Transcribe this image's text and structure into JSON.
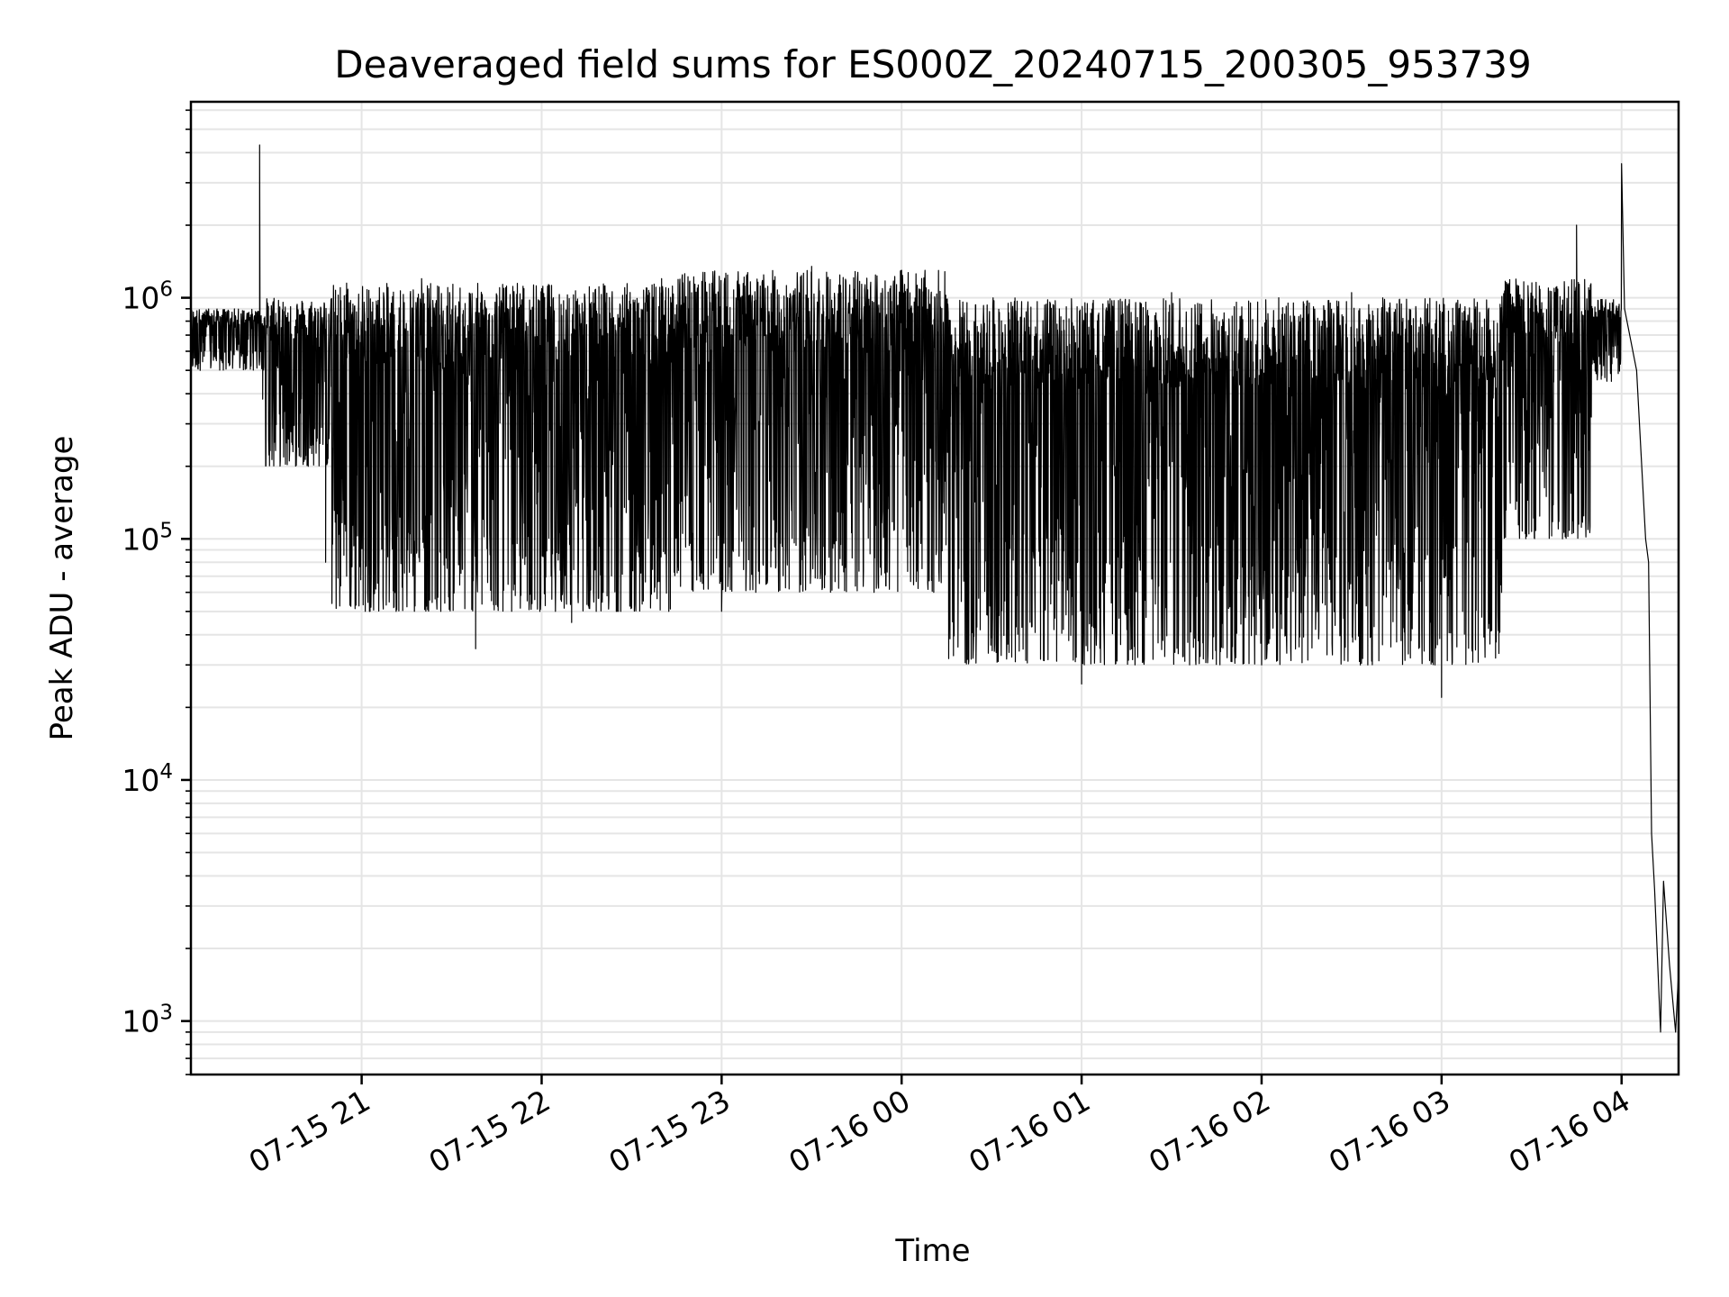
{
  "chart_data": {
    "type": "line",
    "title": "Deaveraged field sums for ES000Z_20240715_200305_953739",
    "xlabel": "Time",
    "ylabel": "Peak ADU - average",
    "y_scale": "log",
    "ylim": [
      600,
      6500000
    ],
    "xlim": [
      "2024-07-15T20:03:05",
      "2024-07-16T04:19:00"
    ],
    "grid": true,
    "grid_color": "#e5e5e5",
    "line_color": "#000000",
    "x_ticks": [
      {
        "t": "2024-07-15T21:00:00",
        "label": "07-15 21"
      },
      {
        "t": "2024-07-15T22:00:00",
        "label": "07-15 22"
      },
      {
        "t": "2024-07-15T23:00:00",
        "label": "07-15 23"
      },
      {
        "t": "2024-07-16T00:00:00",
        "label": "07-16 00"
      },
      {
        "t": "2024-07-16T01:00:00",
        "label": "07-16 01"
      },
      {
        "t": "2024-07-16T02:00:00",
        "label": "07-16 02"
      },
      {
        "t": "2024-07-16T03:00:00",
        "label": "07-16 03"
      },
      {
        "t": "2024-07-16T04:00:00",
        "label": "07-16 04"
      }
    ],
    "y_ticks": [
      {
        "value": 1000,
        "base": "10",
        "exp": "3"
      },
      {
        "value": 10000,
        "base": "10",
        "exp": "4"
      },
      {
        "value": 100000,
        "base": "10",
        "exp": "5"
      },
      {
        "value": 1000000,
        "base": "10",
        "exp": "6"
      }
    ],
    "series": [
      {
        "points": [
          [
            "2024-07-15T20:03:05",
            520000
          ],
          [
            "2024-07-15T20:10:00",
            650000
          ],
          [
            "2024-07-15T20:20:00",
            720000
          ],
          [
            "2024-07-15T20:25:00",
            620000
          ],
          [
            "2024-07-15T20:26:00",
            4300000
          ],
          [
            "2024-07-15T20:27:00",
            380000
          ],
          [
            "2024-07-15T20:35:00",
            250000
          ],
          [
            "2024-07-15T20:48:00",
            80000
          ],
          [
            "2024-07-15T20:55:00",
            1150000
          ],
          [
            "2024-07-15T21:02:00",
            60000
          ],
          [
            "2024-07-15T21:20:00",
            1200000
          ],
          [
            "2024-07-15T21:38:00",
            35000
          ],
          [
            "2024-07-15T21:48:00",
            1100000
          ],
          [
            "2024-07-15T22:10:00",
            45000
          ],
          [
            "2024-07-15T22:40:00",
            1200000
          ],
          [
            "2024-07-15T23:00:00",
            50000
          ],
          [
            "2024-07-15T23:30:00",
            1350000
          ],
          [
            "2024-07-16T00:00:00",
            1300000
          ],
          [
            "2024-07-16T00:30:00",
            40000
          ],
          [
            "2024-07-16T01:00:00",
            25000
          ],
          [
            "2024-07-16T01:30:00",
            1050000
          ],
          [
            "2024-07-16T02:00:00",
            30000
          ],
          [
            "2024-07-16T02:30:00",
            1050000
          ],
          [
            "2024-07-16T03:00:00",
            22000
          ],
          [
            "2024-07-16T03:20:00",
            60000
          ],
          [
            "2024-07-16T03:35:00",
            200000
          ],
          [
            "2024-07-16T03:45:00",
            2000000
          ],
          [
            "2024-07-16T03:55:00",
            700000
          ],
          [
            "2024-07-16T04:00:00",
            3600000
          ],
          [
            "2024-07-16T04:01:00",
            900000
          ],
          [
            "2024-07-16T04:05:00",
            500000
          ],
          [
            "2024-07-16T04:08:00",
            100000
          ],
          [
            "2024-07-16T04:09:00",
            80000
          ],
          [
            "2024-07-16T04:10:00",
            6000
          ],
          [
            "2024-07-16T04:11:00",
            3500
          ],
          [
            "2024-07-16T04:13:00",
            900
          ],
          [
            "2024-07-16T04:14:00",
            3800
          ],
          [
            "2024-07-16T04:16:00",
            1700
          ],
          [
            "2024-07-16T04:18:00",
            900
          ],
          [
            "2024-07-16T04:19:00",
            1600
          ]
        ],
        "bands": [
          {
            "from": "2024-07-15T20:03:05",
            "to": "2024-07-15T20:28:00",
            "hi": 900000,
            "lo": 500000
          },
          {
            "from": "2024-07-15T20:28:00",
            "to": "2024-07-15T20:50:00",
            "hi": 1000000,
            "lo": 200000
          },
          {
            "from": "2024-07-15T20:50:00",
            "to": "2024-07-15T22:45:00",
            "hi": 1150000,
            "lo": 50000
          },
          {
            "from": "2024-07-15T22:45:00",
            "to": "2024-07-16T00:15:00",
            "hi": 1300000,
            "lo": 60000
          },
          {
            "from": "2024-07-16T00:15:00",
            "to": "2024-07-16T03:20:00",
            "hi": 1000000,
            "lo": 30000
          },
          {
            "from": "2024-07-16T03:20:00",
            "to": "2024-07-16T03:50:00",
            "hi": 1200000,
            "lo": 100000
          },
          {
            "from": "2024-07-16T03:50:00",
            "to": "2024-07-16T04:00:00",
            "hi": 1000000,
            "lo": 450000
          }
        ]
      }
    ]
  }
}
